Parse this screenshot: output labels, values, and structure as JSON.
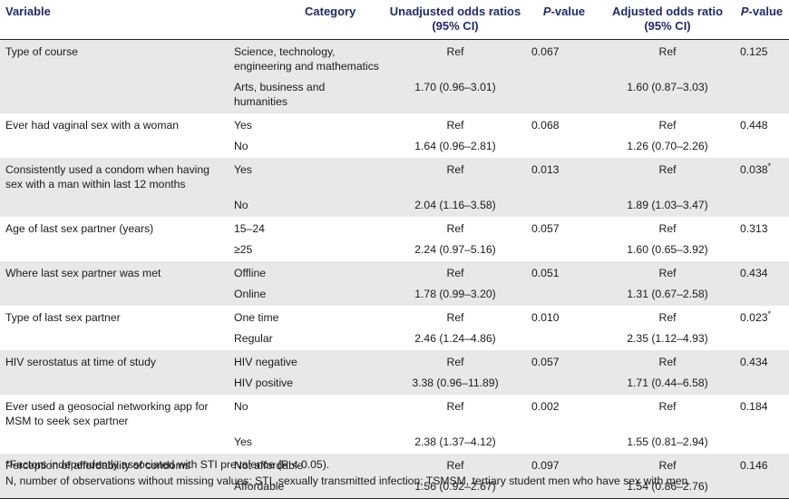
{
  "headers": {
    "variable": "Variable",
    "category": "Category",
    "unadjusted": "Unadjusted odds ratios (95% CI)",
    "p_value": "P-value",
    "adjusted": "Adjusted odds ratio (95% CI)",
    "p_value2": "P-value"
  },
  "groups": [
    {
      "variable": "Type of course",
      "rows": [
        {
          "category": "Science, technology, engineering and mathematics",
          "unadj": "Ref",
          "p1": "0.067",
          "adj": "Ref",
          "p2": "0.125"
        },
        {
          "category": "Arts, business and humanities",
          "unadj": "1.70 (0.96–3.01)",
          "p1": "",
          "adj": "1.60 (0.87–3.03)",
          "p2": ""
        }
      ]
    },
    {
      "variable": "Ever had vaginal sex with a woman",
      "rows": [
        {
          "category": "Yes",
          "unadj": "Ref",
          "p1": "0.068",
          "adj": "Ref",
          "p2": "0.448"
        },
        {
          "category": "No",
          "unadj": "1.64 (0.96–2.81)",
          "p1": "",
          "adj": "1.26 (0.70–2.26)",
          "p2": ""
        }
      ]
    },
    {
      "variable": "Consistently used a condom when having sex with a man within last 12 months",
      "rows": [
        {
          "category": "Yes",
          "unadj": "Ref",
          "p1": "0.013",
          "adj": "Ref",
          "p2": "0.038*"
        },
        {
          "category": "No",
          "unadj": "2.04 (1.16–3.58)",
          "p1": "",
          "adj": "1.89 (1.03–3.47)",
          "p2": ""
        }
      ]
    },
    {
      "variable": "Age of last sex partner (years)",
      "rows": [
        {
          "category": "15–24",
          "unadj": "Ref",
          "p1": "0.057",
          "adj": "Ref",
          "p2": "0.313"
        },
        {
          "category": "≥25",
          "unadj": "2.24 (0.97–5.16)",
          "p1": "",
          "adj": "1.60 (0.65–3.92)",
          "p2": ""
        }
      ]
    },
    {
      "variable": "Where last sex partner was met",
      "rows": [
        {
          "category": "Offline",
          "unadj": "Ref",
          "p1": "0.051",
          "adj": "Ref",
          "p2": "0.434"
        },
        {
          "category": "Online",
          "unadj": "1.78 (0.99–3.20)",
          "p1": "",
          "adj": "1.31 (0.67–2.58)",
          "p2": ""
        }
      ]
    },
    {
      "variable": "Type of last sex partner",
      "rows": [
        {
          "category": "One time",
          "unadj": "Ref",
          "p1": "0.010",
          "adj": "Ref",
          "p2": "0.023*"
        },
        {
          "category": "Regular",
          "unadj": "2.46 (1.24–4.86)",
          "p1": "",
          "adj": "2.35 (1.12–4.93)",
          "p2": ""
        }
      ]
    },
    {
      "variable": "HIV serostatus at time of study",
      "rows": [
        {
          "category": "HIV negative",
          "unadj": "Ref",
          "p1": "0.057",
          "adj": "Ref",
          "p2": "0.434"
        },
        {
          "category": "HIV positive",
          "unadj": "3.38 (0.96–11.89)",
          "p1": "",
          "adj": "1.71 (0.44–6.58)",
          "p2": ""
        }
      ]
    },
    {
      "variable": "Ever used a geosocial networking app for MSM to seek sex partner",
      "rows": [
        {
          "category": "No",
          "unadj": "Ref",
          "p1": "0.002",
          "adj": "Ref",
          "p2": "0.184"
        },
        {
          "category": "Yes",
          "unadj": "2.38 (1.37–4.12)",
          "p1": "",
          "adj": "1.55 (0.81–2.94)",
          "p2": ""
        }
      ]
    },
    {
      "variable": "Perception of affordability of condoms",
      "rows": [
        {
          "category": "Not affordable",
          "unadj": "Ref",
          "p1": "0.097",
          "adj": "Ref",
          "p2": "0.146"
        },
        {
          "category": "Affordable",
          "unadj": "1.56 (0.92–2.67)",
          "p1": "",
          "adj": "1.54 (0.86–2.76)",
          "p2": ""
        }
      ]
    }
  ],
  "footnotes": [
    "*Factors independently associated with STI prevalence (P < 0.05).",
    "N, number of observations without missing values; STI, sexually transmitted infection; TSMSM, tertiary student men who have sex with men."
  ]
}
